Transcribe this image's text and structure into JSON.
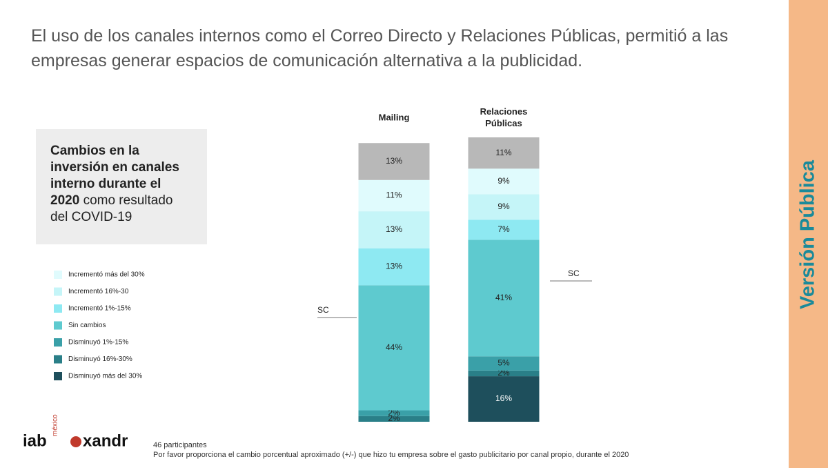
{
  "slide": {
    "title": "El uso de los canales internos como el Correo Directo y Relaciones Públicas, permitió a las empresas generar espacios de comunicación alternativa a la publicidad.",
    "box_bold": "Cambios en la inversión en canales interno durante el 2020",
    "box_text": "como resultado del COVID-19",
    "side_label": "Versión Pública",
    "logo_iab": "iab",
    "logo_mexico": "méxico",
    "logo_xandr": "xandr",
    "participants": "46 participantes",
    "question": "Por favor proporciona el cambio porcentual aproximado (+/-) que hizo tu empresa sobre el gasto publicitario por canal propio, durante el 2020"
  },
  "chart_data": {
    "type": "stacked_bar",
    "categories": [
      "Mailing",
      "Relaciones Públicas"
    ],
    "series": [
      {
        "name": "Disminuyó más del 30%",
        "color": "#1e4f5c",
        "values": [
          null,
          16
        ],
        "value_labels": [
          null,
          "16%"
        ]
      },
      {
        "name": "Disminuyó 16%-30%",
        "color": "#2a7f88",
        "values": [
          2,
          2
        ],
        "value_labels": [
          "2%",
          "2%"
        ]
      },
      {
        "name": "Disminuyó 1%-15%",
        "color": "#3aa0a8",
        "values": [
          2,
          5
        ],
        "value_labels": [
          "2%",
          "5%"
        ]
      },
      {
        "name": "Sin cambios",
        "color": "#5ecacf",
        "values": [
          44,
          41
        ],
        "value_labels": [
          "44%",
          "41%"
        ]
      },
      {
        "name": "Incrementó 1%-15%",
        "color": "#8ee9f2",
        "values": [
          13,
          7
        ],
        "value_labels": [
          "13%",
          "7%"
        ]
      },
      {
        "name": "Incrementó 16%-30",
        "color": "#c5f5f8",
        "values": [
          13,
          9
        ],
        "value_labels": [
          "13%",
          "9%"
        ]
      },
      {
        "name": "Incrementó más del 30%",
        "color": "#e0fbfd",
        "values": [
          11,
          9
        ],
        "value_labels": [
          "11%",
          "9%"
        ]
      },
      {
        "name": "SC",
        "color": "#b8b8b8",
        "values": [
          13,
          11
        ],
        "value_labels": [
          "13%",
          "11%"
        ]
      }
    ]
  }
}
